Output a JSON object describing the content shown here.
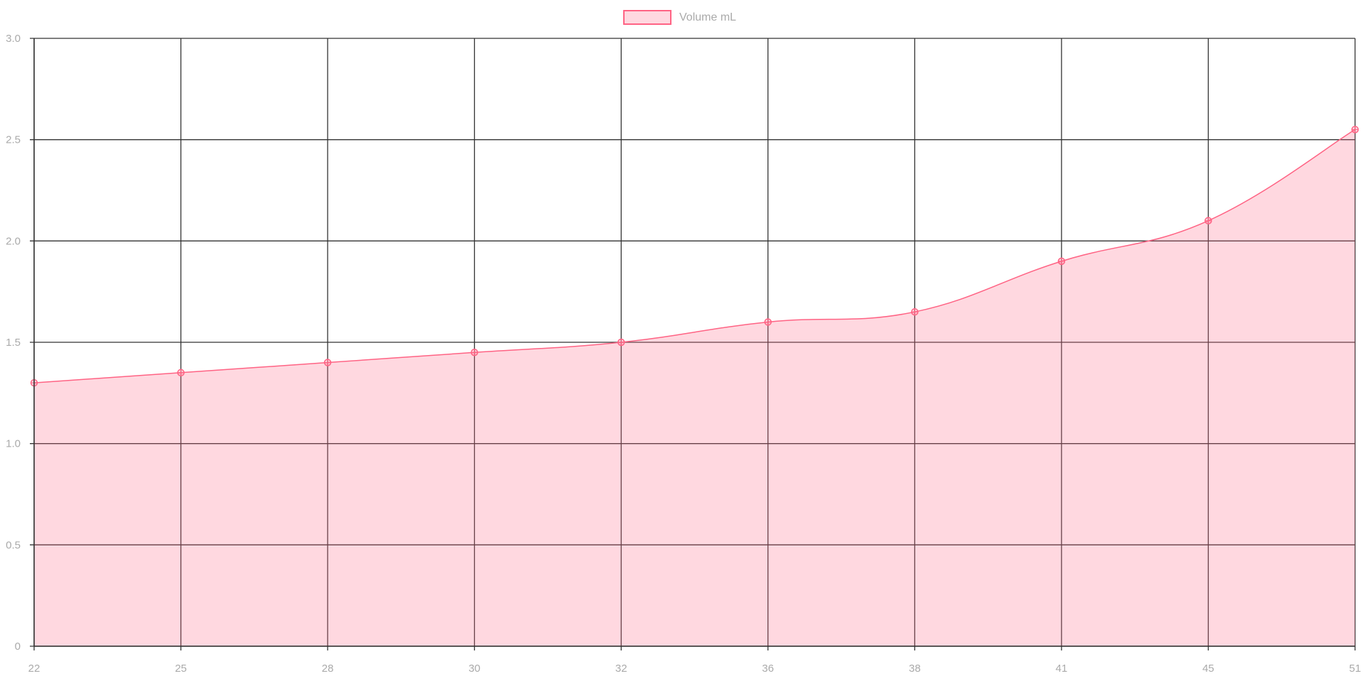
{
  "chart_data": {
    "type": "area",
    "x": [
      22,
      25,
      28,
      30,
      32,
      36,
      38,
      41,
      45,
      51
    ],
    "categories": [
      "22",
      "25",
      "28",
      "30",
      "32",
      "36",
      "38",
      "41",
      "45",
      "51"
    ],
    "series": [
      {
        "name": "Volume mL",
        "values": [
          1.3,
          1.35,
          1.4,
          1.45,
          1.5,
          1.6,
          1.65,
          1.9,
          2.1,
          2.55
        ]
      }
    ],
    "ylim": [
      0,
      3.0
    ],
    "yticks": [
      "0",
      "0.5",
      "1.0",
      "1.5",
      "2.0",
      "2.5",
      "3.0"
    ],
    "grid": true,
    "legend": "top-center",
    "colors": {
      "line": "#ff6384",
      "fill": "rgba(255,99,132,0.25)",
      "grid": "#333333",
      "tick_text": "#aaaaaa"
    }
  }
}
